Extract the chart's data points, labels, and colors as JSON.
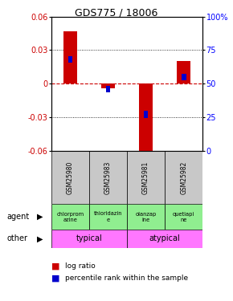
{
  "title": "GDS775 / 18006",
  "samples": [
    "GSM25980",
    "GSM25983",
    "GSM25981",
    "GSM25982"
  ],
  "log_ratios": [
    0.047,
    -0.004,
    -0.065,
    0.02
  ],
  "percentile_ranks": [
    0.68,
    0.46,
    0.27,
    0.55
  ],
  "ylim_left": [
    -0.06,
    0.06
  ],
  "yticks_left": [
    -0.06,
    -0.03,
    0,
    0.03,
    0.06
  ],
  "ytick_labels_left": [
    "-0.06",
    "-0.03",
    "0",
    "0.03",
    "0.06"
  ],
  "yticks_right": [
    0.0,
    0.25,
    0.5,
    0.75,
    1.0
  ],
  "ytick_labels_right": [
    "0",
    "25",
    "50",
    "75",
    "100%"
  ],
  "agents": [
    "chlorprom\nazine",
    "thioridazin\ne",
    "olanzap\nine",
    "quetiapi\nne"
  ],
  "agent_colors": [
    "#90EE90",
    "#90EE90",
    "#90EE90",
    "#90EE90"
  ],
  "other_groups": [
    [
      "typical",
      2
    ],
    [
      "atypical",
      2
    ]
  ],
  "other_color": "#FF77FF",
  "bar_color_red": "#CC0000",
  "bar_color_blue": "#0000CC",
  "zero_line_color": "#CC0000",
  "sample_bg_color": "#C8C8C8",
  "bar_width": 0.35,
  "percentile_bar_width": 0.12,
  "percentile_bar_height": 0.006
}
